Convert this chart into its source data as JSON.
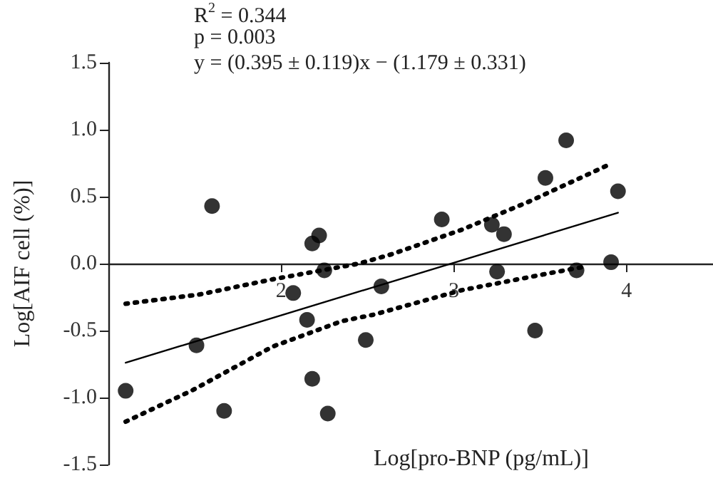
{
  "chart_data": {
    "type": "scatter",
    "xlabel": "Log[pro-BNP (pg/mL)]",
    "ylabel": "Log[AIF cell (%)]",
    "annotations": [
      "R$^{2}$ = 0.344",
      "p = 0.003",
      "y = (0.395 ± 0.119)x − (1.179 ± 0.331)"
    ],
    "xlim": [
      1,
      4.5
    ],
    "xticks": [
      2,
      3,
      4
    ],
    "ylim": [
      -1.5,
      1.5
    ],
    "yticks": [
      {
        "value": -1.5,
        "label": "-1.5"
      },
      {
        "value": -1,
        "label": "-1.0"
      },
      {
        "value": -0.5,
        "label": "-0.5"
      },
      {
        "value": 0,
        "label": "0.0"
      },
      {
        "value": 0.5,
        "label": "0.5"
      },
      {
        "value": 1,
        "label": "1.0"
      },
      {
        "value": 1.5,
        "label": "1.5"
      }
    ],
    "grid": false,
    "marker": "circle",
    "series": [
      {
        "color": "#000000",
        "x": [
          1.1,
          1.6,
          1.51,
          1.67,
          2.07,
          2.15,
          2.18,
          2.22,
          2.25,
          2.18,
          2.27,
          2.49,
          2.58,
          2.93,
          3.22,
          3.29,
          3.25,
          3.47,
          3.53,
          3.65,
          3.71,
          3.91,
          3.95
        ],
        "values": [
          -0.95,
          0.43,
          -0.61,
          -1.1,
          -0.22,
          -0.42,
          0.15,
          0.21,
          -0.05,
          -0.86,
          -1.12,
          -0.57,
          -0.17,
          0.33,
          0.29,
          0.22,
          -0.06,
          -0.5,
          0.64,
          0.92,
          -0.05,
          0.01,
          0.54
        ]
      },
      {
        "type": "line",
        "color": "#000000",
        "marker": "none",
        "line_style": "solid",
        "x": [
          1.1,
          3.95
        ],
        "values": [
          -0.74,
          0.38
        ]
      },
      {
        "type": "line",
        "color": "#000000",
        "marker": "none",
        "line_style": "dotted",
        "x": [
          1.1,
          1.53,
          1.94,
          2.45,
          2.64,
          3.04,
          3.43,
          3.9
        ],
        "values": [
          -0.3,
          -0.23,
          -0.12,
          0.0,
          0.07,
          0.25,
          0.46,
          0.74
        ]
      },
      {
        "type": "line",
        "color": "#000000",
        "marker": "none",
        "line_style": "dotted",
        "x": [
          1.1,
          1.48,
          1.95,
          2.35,
          2.54,
          3.04,
          3.56,
          3.77
        ],
        "values": [
          -1.18,
          -0.95,
          -0.62,
          -0.43,
          -0.38,
          -0.2,
          -0.07,
          -0.02
        ]
      }
    ]
  }
}
